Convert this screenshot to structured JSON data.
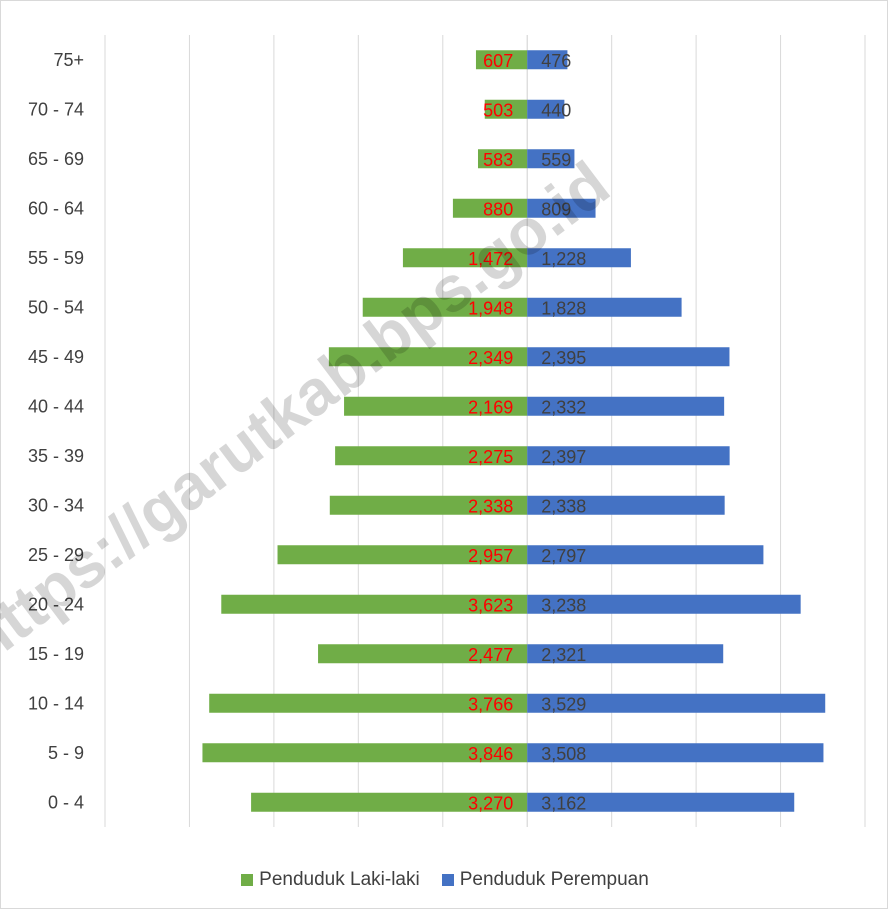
{
  "chart_data": {
    "type": "bar",
    "orientation": "horizontal-diverging",
    "categories": [
      "75+",
      "70 - 74",
      "65 - 69",
      "60 - 64",
      "55 - 59",
      "50 - 54",
      "45 - 49",
      "40 - 44",
      "35 - 39",
      "30 - 34",
      "25 - 29",
      "20 - 24",
      "15 - 19",
      "10 - 14",
      "5 - 9",
      "0 - 4"
    ],
    "series": [
      {
        "name": "Penduduk Laki-laki",
        "color": "#70ad47",
        "label_color": "#ff0000",
        "values": [
          607,
          503,
          583,
          880,
          1472,
          1948,
          2349,
          2169,
          2275,
          2338,
          2957,
          3623,
          2477,
          3766,
          3846,
          3270
        ],
        "labels": [
          "607",
          "503",
          "583",
          "880",
          "1,472",
          "1,948",
          "2,349",
          "2,169",
          "2,275",
          "2,338",
          "2,957",
          "3,623",
          "2,477",
          "3,766",
          "3,846",
          "3,270"
        ]
      },
      {
        "name": "Penduduk Perempuan",
        "color": "#4472c4",
        "label_color": "#404040",
        "values": [
          476,
          440,
          559,
          809,
          1228,
          1828,
          2395,
          2332,
          2397,
          2338,
          2797,
          3238,
          2321,
          3529,
          3508,
          3162
        ],
        "labels": [
          "476",
          "440",
          "559",
          "809",
          "1,228",
          "1,828",
          "2,395",
          "2,332",
          "2,397",
          "2,338",
          "2,797",
          "3,238",
          "2,321",
          "3,529",
          "3,508",
          "3,162"
        ]
      }
    ],
    "xlim": [
      -5000,
      4000
    ],
    "grid": true,
    "legend_position": "bottom",
    "title": "",
    "xlabel": "",
    "ylabel": ""
  },
  "watermark": "https://garutkab.bps.go.id"
}
